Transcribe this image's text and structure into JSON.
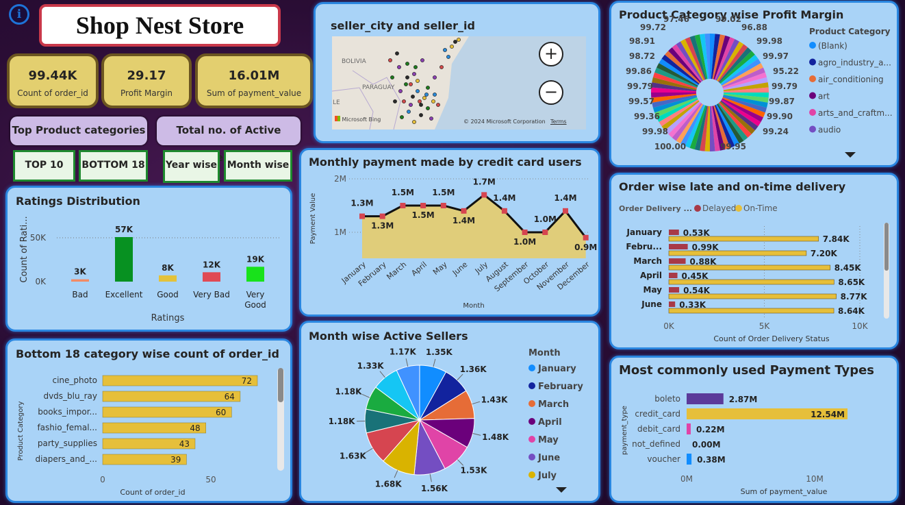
{
  "title": "Shop Nest Store",
  "kpis": [
    {
      "value": "99.44K",
      "label": "Count of order_id"
    },
    {
      "value": "29.17",
      "label": "Profit Margin"
    },
    {
      "value": "16.01M",
      "label": "Sum of payment_value"
    }
  ],
  "buttons": {
    "top_cat": "Top Product categories",
    "active_sellers": "Total no. of Active Sellers",
    "top10": "TOP 10",
    "bottom18": "BOTTOM 18",
    "year_wise": "Year wise",
    "month_wise": "Month wise"
  },
  "map": {
    "title": "seller_city and seller_id",
    "label_bolivia": "BOLIVIA",
    "label_paraguay": "PARAGUAY",
    "label_le": "LE",
    "bing": "Microsoft Bing",
    "copyright": "© 2024 Microsoft Corporation",
    "terms": "Terms",
    "zoom_in": "+",
    "zoom_out": "−"
  },
  "profit": {
    "title": "Product Category wise Profit Margin",
    "legend_title": "Product Category",
    "legend": [
      {
        "name": "(Blank)",
        "color": "#118dff"
      },
      {
        "name": "agro_industry_a...",
        "color": "#12239e"
      },
      {
        "name": "air_conditioning",
        "color": "#e66c37"
      },
      {
        "name": "art",
        "color": "#6b007b"
      },
      {
        "name": "arts_and_craftm...",
        "color": "#e044a7"
      },
      {
        "name": "audio",
        "color": "#744ec2"
      }
    ],
    "labels": [
      "97.46",
      "99.02",
      "99.72",
      "96.88",
      "98.91",
      "99.98",
      "98.72",
      "99.97",
      "99.86",
      "95.22",
      "99.79",
      "99.79",
      "99.57",
      "99.87",
      "99.36",
      "99.90",
      "99.98",
      "99.24",
      "100.00",
      "99.95"
    ]
  },
  "ratings": {
    "title": "Ratings Distribution",
    "y_title": "Count of Rati...",
    "x_title": "Ratings",
    "y_ticks": [
      "50K",
      "0K"
    ],
    "categories": [
      "Bad",
      "Excellent",
      "Good",
      "Very Bad",
      "Very Good"
    ],
    "values": [
      3,
      57,
      8,
      12,
      19
    ],
    "labels": [
      "3K",
      "57K",
      "8K",
      "12K",
      "19K"
    ],
    "colors": [
      "#f28b66",
      "#079121",
      "#e3c23a",
      "#e04a55",
      "#18e21b"
    ]
  },
  "credit": {
    "title": "Monthly payment made by credit card users",
    "y_title": "Payment Value",
    "x_title": "Month",
    "y_ticks": [
      "2M",
      "1M"
    ],
    "months": [
      "January",
      "February",
      "March",
      "April",
      "May",
      "June",
      "July",
      "August",
      "September",
      "October",
      "November",
      "December"
    ],
    "values": [
      1.3,
      1.3,
      1.5,
      1.5,
      1.5,
      1.4,
      1.7,
      1.4,
      1.0,
      1.0,
      1.4,
      0.9
    ],
    "labels": [
      "1.3M",
      "1.3M",
      "1.5M",
      "1.5M",
      "1.5M",
      "1.4M",
      "1.7M",
      "1.4M",
      "1.0M",
      "1.0M",
      "1.4M",
      "0.9M"
    ]
  },
  "delivery": {
    "title": "Order wise late and on-time delivery",
    "legend_title": "Order Delivery ...",
    "legend": [
      {
        "name": "Delayed",
        "color": "#a83a48"
      },
      {
        "name": "On-Time",
        "color": "#e6bf3a"
      }
    ],
    "x_title": "Count of Order Delivery Status",
    "x_ticks": [
      "0K",
      "5K",
      "10K"
    ],
    "months": [
      "January",
      "Febru...",
      "March",
      "April",
      "May",
      "June"
    ],
    "delayed": [
      0.53,
      0.99,
      0.88,
      0.45,
      0.54,
      0.33
    ],
    "ontime": [
      7.84,
      7.2,
      8.45,
      8.65,
      8.77,
      8.64
    ],
    "delayed_labels": [
      "0.53K",
      "0.99K",
      "0.88K",
      "0.45K",
      "0.54K",
      "0.33K"
    ],
    "ontime_labels": [
      "7.84K",
      "7.20K",
      "8.45K",
      "8.65K",
      "8.77K",
      "8.64K"
    ]
  },
  "bottom18": {
    "title": "Bottom 18 category wise count of order_id",
    "y_title": "Product Category",
    "x_title": "Count of order_id",
    "x_ticks": [
      "0",
      "50"
    ],
    "categories": [
      "cine_photo",
      "dvds_blu_ray",
      "books_impor...",
      "fashio_femal...",
      "party_supplies",
      "diapers_and_..."
    ],
    "values": [
      72,
      64,
      60,
      48,
      43,
      39
    ]
  },
  "sellers": {
    "title": "Month wise Active Sellers",
    "legend_title": "Month",
    "values": [
      1.35,
      1.36,
      1.43,
      1.48,
      1.53,
      1.56,
      1.68,
      1.63,
      1.18,
      1.18,
      1.33,
      1.17
    ],
    "labels": [
      "1.35K",
      "1.36K",
      "1.43K",
      "1.48K",
      "1.53K",
      "1.56K",
      "1.68K",
      "1.63K",
      "1.18K",
      "1.18K",
      "1.33K",
      "1.17K"
    ],
    "colors": [
      "#118dff",
      "#12239e",
      "#e66c37",
      "#6b007b",
      "#e044a7",
      "#744ec2",
      "#d9b300",
      "#d64550",
      "#197278",
      "#1aab40",
      "#15c6f4",
      "#4092ff"
    ],
    "legend": [
      {
        "name": "January",
        "color": "#118dff"
      },
      {
        "name": "February",
        "color": "#12239e"
      },
      {
        "name": "March",
        "color": "#e66c37"
      },
      {
        "name": "April",
        "color": "#6b007b"
      },
      {
        "name": "May",
        "color": "#e044a7"
      },
      {
        "name": "June",
        "color": "#744ec2"
      },
      {
        "name": "July",
        "color": "#d9b300"
      }
    ]
  },
  "payment": {
    "title": "Most commonly used Payment Types",
    "y_title": "payment_type",
    "x_title": "Sum of payment_value",
    "x_ticks": [
      "0M",
      "10M"
    ],
    "types": [
      "boleto",
      "credit_card",
      "debit_card",
      "not_defined",
      "voucher"
    ],
    "values": [
      2.87,
      12.54,
      0.22,
      0.0,
      0.38
    ],
    "labels": [
      "2.87M",
      "12.54M",
      "0.22M",
      "0.00M",
      "0.38M"
    ],
    "colors": [
      "#5b3a9a",
      "#e6bf3a",
      "#e044a7",
      "#888888",
      "#118dff"
    ]
  }
}
